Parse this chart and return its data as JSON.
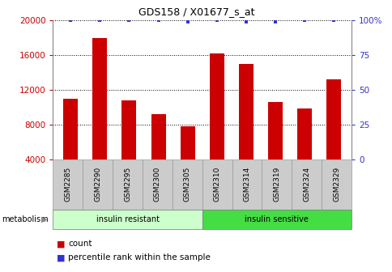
{
  "title": "GDS158 / X01677_s_at",
  "categories": [
    "GSM2285",
    "GSM2290",
    "GSM2295",
    "GSM2300",
    "GSM2305",
    "GSM2310",
    "GSM2314",
    "GSM2319",
    "GSM2324",
    "GSM2329"
  ],
  "counts": [
    11000,
    18000,
    10800,
    9200,
    7800,
    16200,
    15000,
    10600,
    9800,
    13200
  ],
  "percentile_ranks": [
    100,
    100,
    100,
    100,
    99,
    100,
    99,
    99,
    100,
    100
  ],
  "bar_color": "#cc0000",
  "dot_color": "#3333cc",
  "ylim_left": [
    4000,
    20000
  ],
  "ylim_right": [
    0,
    100
  ],
  "yticks_left": [
    4000,
    8000,
    12000,
    16000,
    20000
  ],
  "yticks_right": [
    0,
    25,
    50,
    75,
    100
  ],
  "groups": [
    {
      "label": "insulin resistant",
      "start": 0,
      "end": 5,
      "color": "#ccffcc"
    },
    {
      "label": "insulin sensitive",
      "start": 5,
      "end": 10,
      "color": "#44dd44"
    }
  ],
  "group_row_label": "metabolism",
  "legend_count_label": "count",
  "legend_percentile_label": "percentile rank within the sample",
  "tick_label_color_left": "#cc0000",
  "tick_label_color_right": "#3333cc",
  "xtick_bg_color": "#cccccc",
  "xtick_border_color": "#999999"
}
